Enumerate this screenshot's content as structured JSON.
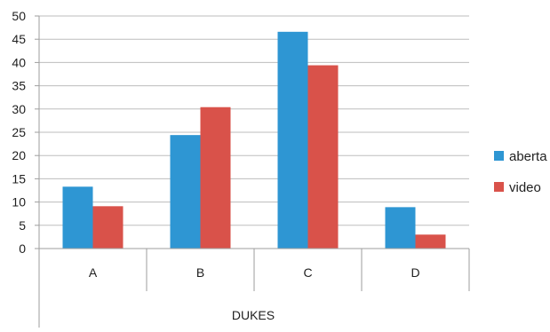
{
  "chart_data": {
    "type": "bar",
    "title": "",
    "xlabel": "DUKES",
    "ylabel": "",
    "categories": [
      "A",
      "B",
      "C",
      "D"
    ],
    "ylim": [
      0,
      50
    ],
    "yticks": [
      0,
      5,
      10,
      15,
      20,
      25,
      30,
      35,
      40,
      45,
      50
    ],
    "grid": true,
    "legend_position": "right",
    "series": [
      {
        "name": "aberta",
        "color": "#2e96d3",
        "values": [
          13.3,
          24.4,
          46.6,
          8.9
        ]
      },
      {
        "name": "video",
        "color": "#d9524a",
        "values": [
          9.1,
          30.4,
          39.4,
          3.0
        ]
      }
    ]
  }
}
